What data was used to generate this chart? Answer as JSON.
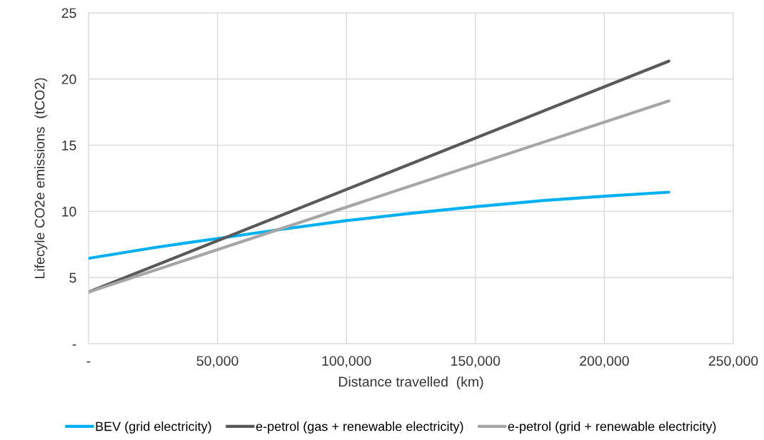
{
  "chart_data": {
    "type": "line",
    "xlabel": "Distance travelled  (km)",
    "ylabel": "Lifecyle CO2e emissions  (tCO2)",
    "series": [
      {
        "name": "BEV (grid electricity)",
        "color": "#00b0f0",
        "x": [
          0,
          25000,
          50000,
          75000,
          100000,
          125000,
          150000,
          175000,
          200000,
          225000
        ],
        "values": [
          6.45,
          7.25,
          7.95,
          8.65,
          9.3,
          9.85,
          10.35,
          10.8,
          11.15,
          11.45
        ]
      },
      {
        "name": "e-petrol (gas + renewable electricity)",
        "color": "#595959",
        "x": [
          0,
          225000
        ],
        "values": [
          3.9,
          21.35
        ]
      },
      {
        "name": "e-petrol (grid + renewable electricity)",
        "color": "#a6a6a6",
        "x": [
          0,
          225000
        ],
        "values": [
          3.9,
          18.35
        ]
      }
    ],
    "xlim": [
      0,
      250000
    ],
    "xticks": [
      {
        "value": 0,
        "label": "-"
      },
      {
        "value": 50000,
        "label": "50,000"
      },
      {
        "value": 100000,
        "label": "100,000"
      },
      {
        "value": 150000,
        "label": "150,000"
      },
      {
        "value": 200000,
        "label": "200,000"
      },
      {
        "value": 250000,
        "label": "250,000"
      }
    ],
    "ylim": [
      0,
      25
    ],
    "yticks": [
      {
        "value": 0,
        "label": "-"
      },
      5,
      10,
      15,
      20,
      25
    ],
    "grid": true,
    "legend": "bottom",
    "marker": "none",
    "line_style": "solid"
  }
}
